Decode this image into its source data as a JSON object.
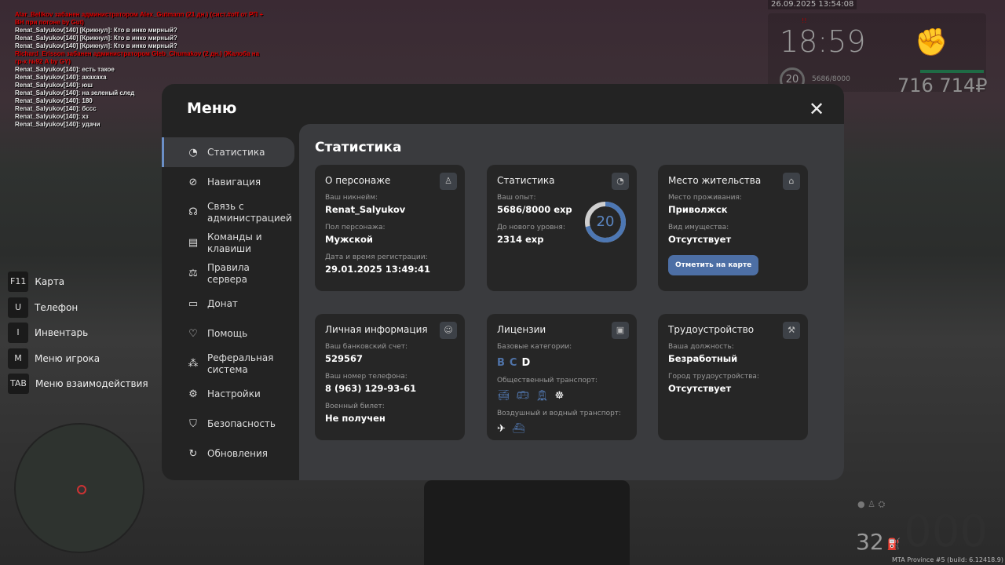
{
  "chat": [
    {
      "text": "Alar_Belikov забанен администратором Alex_Gutmann (21 дн.) (сист.#off от РП + ВН при погоне by Gut)",
      "color": "red"
    },
    {
      "text": "Renat_Salyukov[140] [Крикнул]: Кто в инко мирный?",
      "color": "white"
    },
    {
      "text": "Renat_Salyukov[140] [Крикнул]: Кто в инко мирный?",
      "color": "white"
    },
    {
      "text": "Renat_Salyukov[140] [Крикнул]: Кто в инко мирный?",
      "color": "white"
    },
    {
      "text": "Richard_Erisson забанен администратором Gleb_Chumakov (2 дн.) (Жалоба на гр-х №92 A by GY)",
      "color": "red"
    },
    {
      "text": "Renat_Salyukov[140]: есть такое",
      "color": "white"
    },
    {
      "text": "Renat_Salyukov[140]: ахахаха",
      "color": "white"
    },
    {
      "text": "Renat_Salyukov[140]: юш",
      "color": "white"
    },
    {
      "text": "Renat_Salyukov[140]: на зеленый след",
      "color": "white"
    },
    {
      "text": "Renat_Salyukov[140]: 180",
      "color": "white"
    },
    {
      "text": "Renat_Salyukov[140]: бссс",
      "color": "white"
    },
    {
      "text": "Renat_Salyukov[140]: хз",
      "color": "white"
    },
    {
      "text": "Renat_Salyukov[140]: удачи",
      "color": "white"
    }
  ],
  "hud": {
    "datetime": "26.09.2025 13:54:08",
    "time": "18:59",
    "indicator": "!!",
    "level": "20",
    "exp": "5686/8000",
    "money": "716 714₽",
    "speed": "32",
    "gauge": "000",
    "build": "MTA Province #5 (build: 6.12418.9)"
  },
  "hotkeys": [
    {
      "key": "F11",
      "label": "Карта"
    },
    {
      "key": "U",
      "label": "Телефон"
    },
    {
      "key": "I",
      "label": "Инвентарь"
    },
    {
      "key": "M",
      "label": "Меню игрока"
    },
    {
      "key": "TAB",
      "label": "Меню взаимодействия"
    }
  ],
  "menu": {
    "title": "Меню",
    "close": "✕",
    "nav": [
      {
        "label": "Статистика",
        "icon": "pie-chart-icon",
        "glyph": "◔",
        "active": true
      },
      {
        "label": "Навигация",
        "icon": "compass-icon",
        "glyph": "⊘"
      },
      {
        "label": "Связь с администрацией",
        "icon": "headset-icon",
        "glyph": "☊"
      },
      {
        "label": "Команды и клавиши",
        "icon": "document-icon",
        "glyph": "▤"
      },
      {
        "label": "Правила сервера",
        "icon": "scales-icon",
        "glyph": "⚖"
      },
      {
        "label": "Донат",
        "icon": "wallet-icon",
        "glyph": "▭"
      },
      {
        "label": "Помощь",
        "icon": "heart-hand-icon",
        "glyph": "♡"
      },
      {
        "label": "Реферальная система",
        "icon": "network-icon",
        "glyph": "⁂"
      },
      {
        "label": "Настройки",
        "icon": "gear-icon",
        "glyph": "⚙"
      },
      {
        "label": "Безопасность",
        "icon": "shield-icon",
        "glyph": "⛉"
      },
      {
        "label": "Обновления",
        "icon": "refresh-check-icon",
        "glyph": "↻"
      }
    ]
  },
  "content": {
    "title": "Статистика",
    "character": {
      "title": "О персонаже",
      "f1": "Ваш никнейм:",
      "v1": "Renat_Salyukov",
      "f2": "Пол персонажа:",
      "v2": "Мужской",
      "f3": "Дата и время регистрации:",
      "v3": "29.01.2025 13:49:41"
    },
    "stats": {
      "title": "Статистика",
      "f1": "Ваш опыт:",
      "v1": "5686/8000 exp",
      "f2": "До нового уровня:",
      "v2": "2314 exp",
      "level": "20",
      "progress": 0.71
    },
    "residence": {
      "title": "Место жительства",
      "f1": "Место проживания:",
      "v1": "Приволжск",
      "f2": "Вид имущества:",
      "v2": "Отсутствует",
      "button": "Отметить на карте"
    },
    "personal": {
      "title": "Личная информация",
      "f1": "Ваш банковский счет:",
      "v1": "529567",
      "f2": "Ваш номер телефона:",
      "v2": "8 (963) 129-93-61",
      "f3": "Военный билет:",
      "v3": "Не получен"
    },
    "licenses": {
      "title": "Лицензии",
      "f1": "Базовые категории:",
      "categories": [
        {
          "l": "B",
          "owned": true
        },
        {
          "l": "C",
          "owned": true
        },
        {
          "l": "D",
          "owned": false
        }
      ],
      "f2": "Общественный транспорт:",
      "f3": "Воздушный и водный транспорт:"
    },
    "job": {
      "title": "Трудоустройство",
      "f1": "Ваша должность:",
      "v1": "Безработный",
      "f2": "Город трудоустройства:",
      "v2": "Отсутствует"
    }
  },
  "colors": {
    "accent": "#5b86c2",
    "panel": "#232323",
    "card": "#262626"
  }
}
